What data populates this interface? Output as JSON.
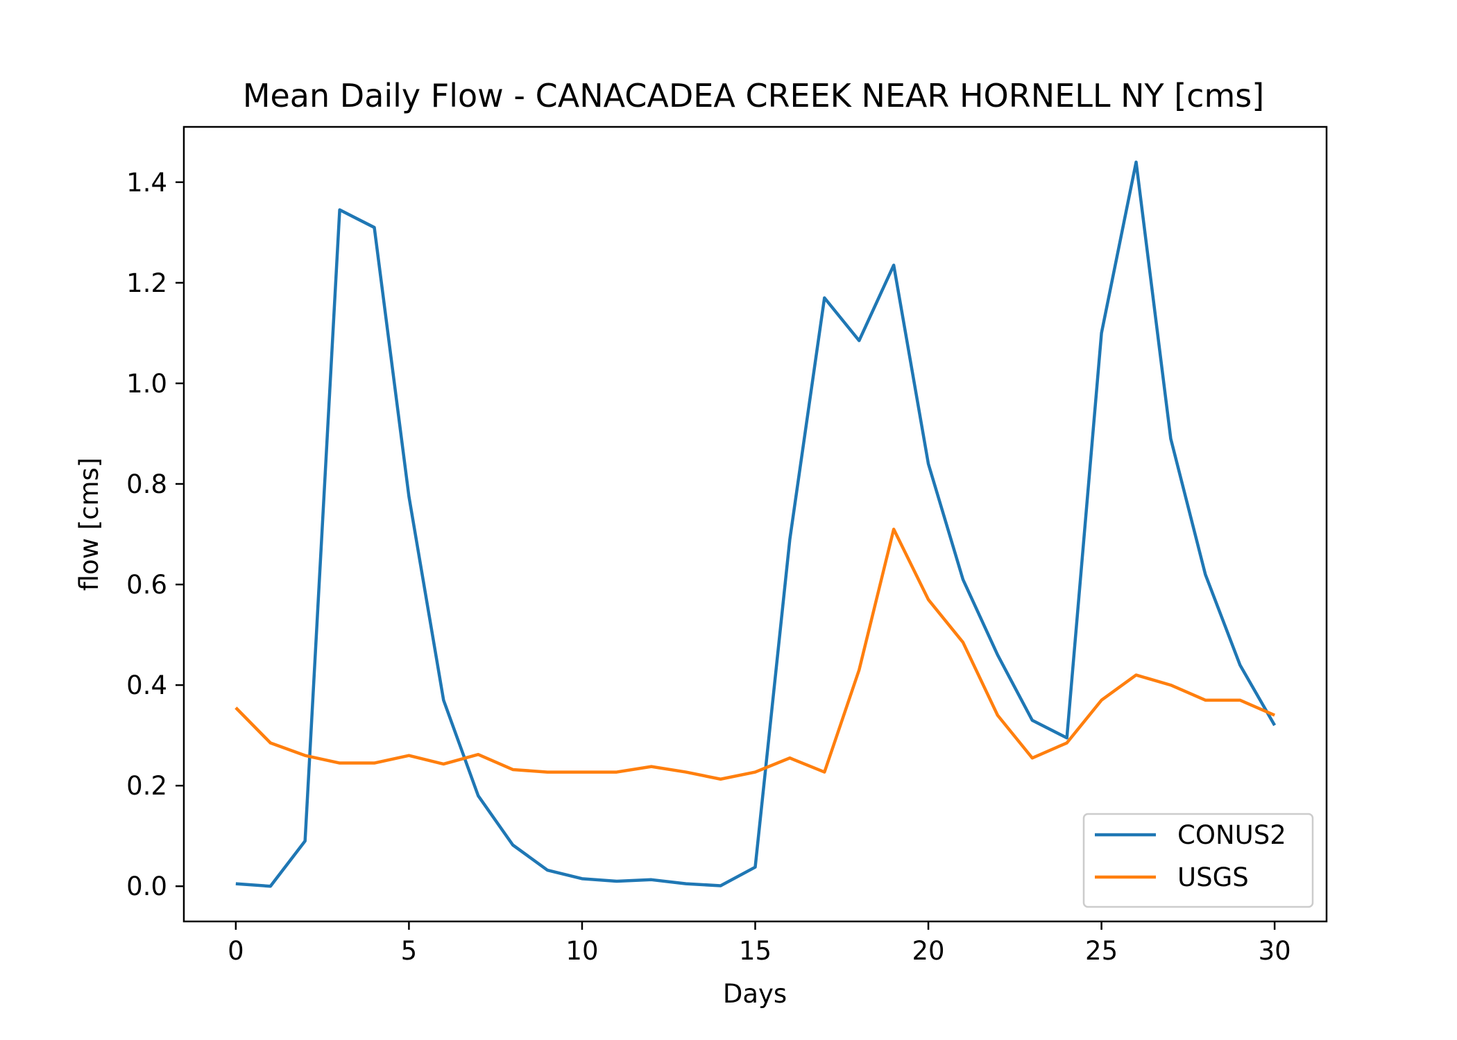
{
  "chart_data": {
    "type": "line",
    "title": "Mean Daily Flow - CANACADEA CREEK NEAR HORNELL NY [cms]",
    "xlabel": "Days",
    "ylabel": "flow [cms]",
    "xlim": [
      -1.5,
      31.5
    ],
    "ylim": [
      -0.07,
      1.51
    ],
    "xticks": [
      0,
      5,
      10,
      15,
      20,
      25,
      30
    ],
    "yticks": [
      0.0,
      0.2,
      0.4,
      0.6,
      0.8,
      1.0,
      1.2,
      1.4
    ],
    "ytick_labels": [
      "0.0",
      "0.2",
      "0.4",
      "0.6",
      "0.8",
      "1.0",
      "1.2",
      "1.4"
    ],
    "grid": false,
    "legend_position": "lower-right",
    "x": [
      0,
      1,
      2,
      3,
      4,
      5,
      6,
      7,
      8,
      9,
      10,
      11,
      12,
      13,
      14,
      15,
      16,
      17,
      18,
      19,
      20,
      21,
      22,
      23,
      24,
      25,
      26,
      27,
      28,
      29,
      30
    ],
    "series": [
      {
        "name": "CONUS2",
        "color": "#1f77b4",
        "values": [
          0.005,
          0.0,
          0.09,
          1.345,
          1.31,
          0.775,
          0.37,
          0.18,
          0.082,
          0.032,
          0.015,
          0.01,
          0.013,
          0.005,
          0.001,
          0.038,
          0.69,
          1.17,
          1.085,
          1.235,
          0.84,
          0.61,
          0.46,
          0.33,
          0.295,
          1.1,
          1.44,
          0.89,
          0.62,
          0.44,
          0.32
        ]
      },
      {
        "name": "USGS",
        "color": "#ff7f0e",
        "values": [
          0.355,
          0.285,
          0.26,
          0.245,
          0.245,
          0.26,
          0.243,
          0.262,
          0.232,
          0.227,
          0.227,
          0.227,
          0.238,
          0.227,
          0.213,
          0.227,
          0.255,
          0.227,
          0.43,
          0.71,
          0.57,
          0.485,
          0.34,
          0.255,
          0.285,
          0.37,
          0.42,
          0.4,
          0.37,
          0.37,
          0.34
        ]
      }
    ]
  }
}
